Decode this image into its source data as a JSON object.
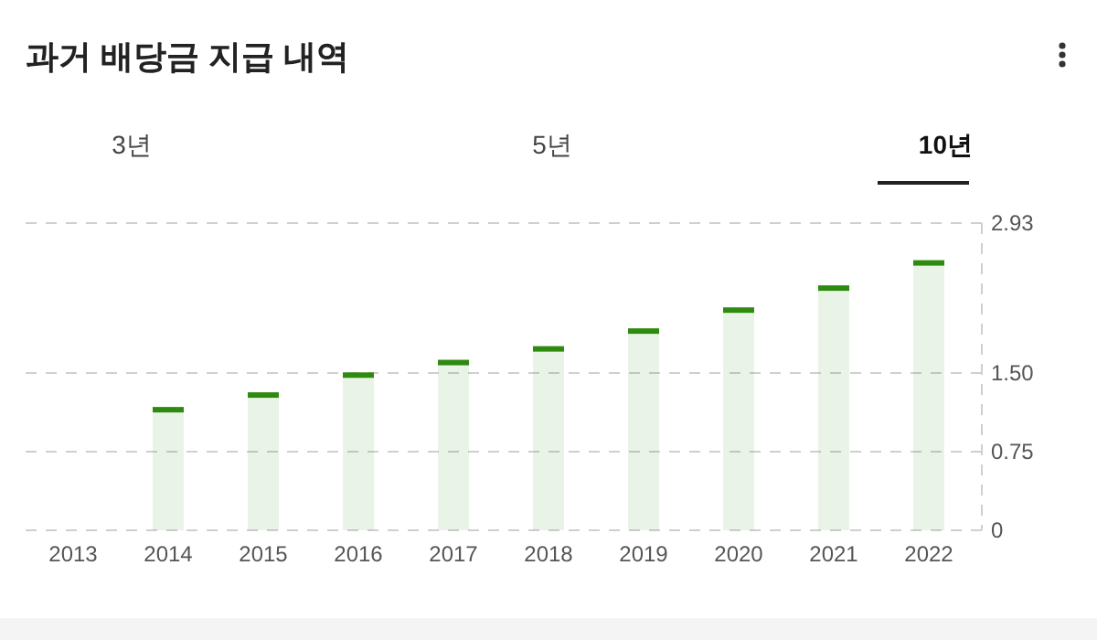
{
  "chart_data": {
    "type": "bar",
    "title": "과거 배당금 지급 내역",
    "annotations": [
      "3년",
      "5년",
      "10년"
    ],
    "categories": [
      "2013",
      "2014",
      "2015",
      "2016",
      "2017",
      "2018",
      "2019",
      "2020",
      "2021",
      "2022"
    ],
    "series": [
      {
        "color": "#2e8b10",
        "values": [
          null,
          1.15,
          1.29,
          1.48,
          1.6,
          1.73,
          1.9,
          2.1,
          2.31,
          2.55
        ]
      }
    ],
    "ylim": [
      0,
      2.93
    ],
    "yticks": [
      0,
      0.75,
      {
        "value": 1.5,
        "label": "1.50"
      },
      2.93
    ],
    "grid": "y"
  }
}
